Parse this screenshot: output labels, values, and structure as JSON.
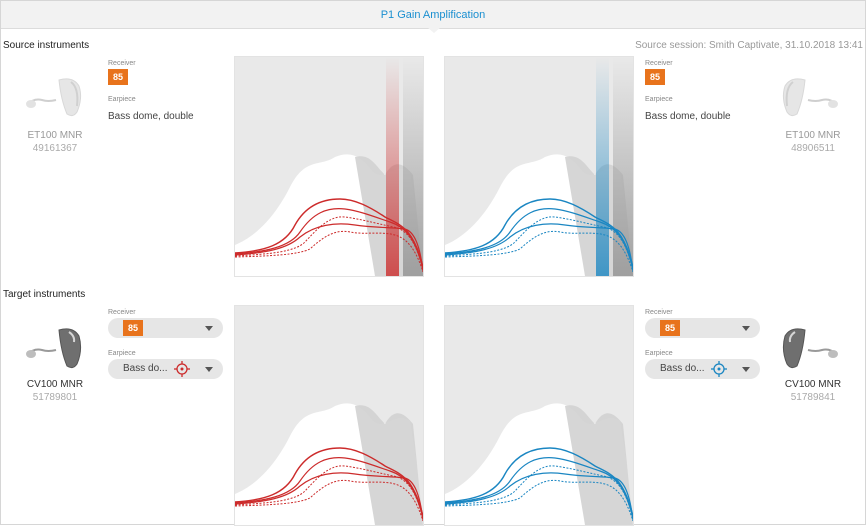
{
  "header": {
    "title": "P1 Gain Amplification"
  },
  "source": {
    "section_title": "Source instruments",
    "session": "Source session: Smith Captivate, 31.10.2018 13:41",
    "left": {
      "receiver_label": "Receiver",
      "receiver_value": "85",
      "earpiece_label": "Earpiece",
      "earpiece_value": "Bass dome, double",
      "model": "ET100 MNR",
      "serial": "49161367"
    },
    "right": {
      "receiver_label": "Receiver",
      "receiver_value": "85",
      "earpiece_label": "Earpiece",
      "earpiece_value": "Bass dome, double",
      "model": "ET100 MNR",
      "serial": "48906511"
    }
  },
  "target": {
    "section_title": "Target instruments",
    "left": {
      "receiver_label": "Receiver",
      "receiver_value": "85",
      "earpiece_label": "Earpiece",
      "earpiece_value": "Bass do...",
      "model": "CV100 MNR",
      "serial": "51789801"
    },
    "right": {
      "receiver_label": "Receiver",
      "receiver_value": "85",
      "earpiece_label": "Earpiece",
      "earpiece_value": "Bass do...",
      "model": "CV100 MNR",
      "serial": "51789841"
    }
  },
  "colors": {
    "left_ear": "#cc2b2b",
    "right_ear": "#1a86c2",
    "accent": "#1a8fd0",
    "badge": "#e8731c"
  },
  "icons": {
    "hearing_aid": "hearing-aid-icon",
    "target": "crosshair-icon",
    "chevron": "chevron-down-icon"
  }
}
